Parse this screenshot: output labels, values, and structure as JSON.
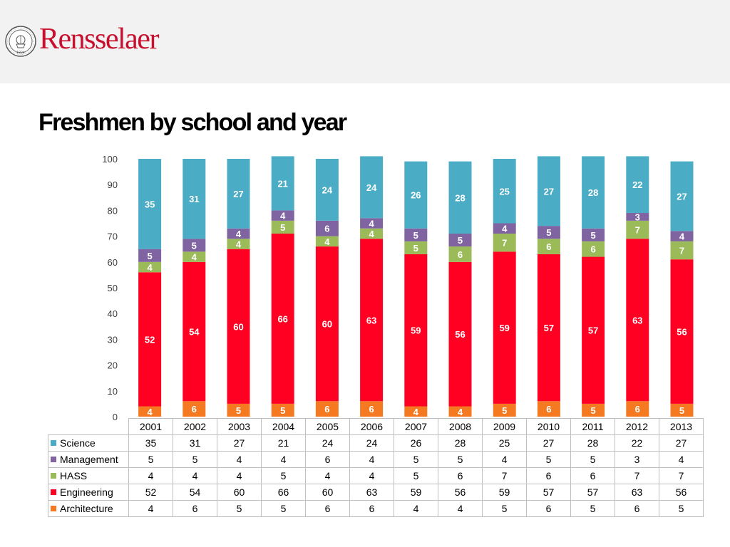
{
  "header": {
    "brand": "Rensselaer",
    "seal": {
      "label": "Rensselaer Polytechnic Institute seal",
      "year": "1824"
    }
  },
  "page_title": "Freshmen by school and year",
  "colors": {
    "header_bg": "#f2f2f2",
    "brand": "#c8102e",
    "Science": "#4bacc6",
    "Management": "#8064a2",
    "HASS": "#9bbb59",
    "Engineering": "#ff0022",
    "Architecture": "#f47920"
  },
  "chart_data": {
    "type": "bar",
    "stacked": true,
    "title": "",
    "xlabel": "",
    "ylabel": "",
    "ylim": [
      0,
      100
    ],
    "yticks": [
      0,
      10,
      20,
      30,
      40,
      50,
      60,
      70,
      80,
      90,
      100
    ],
    "grid": false,
    "legend": "data table below the chart",
    "categories": [
      "2001",
      "2002",
      "2003",
      "2004",
      "2005",
      "2006",
      "2007",
      "2008",
      "2009",
      "2010",
      "2011",
      "2012",
      "2013"
    ],
    "series": [
      {
        "name": "Architecture",
        "color": "#f47920",
        "values": [
          4,
          6,
          5,
          5,
          6,
          6,
          4,
          4,
          5,
          6,
          5,
          6,
          5
        ]
      },
      {
        "name": "Engineering",
        "color": "#ff0022",
        "values": [
          52,
          54,
          60,
          66,
          60,
          63,
          59,
          56,
          59,
          57,
          57,
          63,
          56
        ]
      },
      {
        "name": "HASS",
        "color": "#9bbb59",
        "values": [
          4,
          4,
          4,
          5,
          4,
          4,
          5,
          6,
          7,
          6,
          6,
          7,
          7
        ]
      },
      {
        "name": "Management",
        "color": "#8064a2",
        "values": [
          5,
          5,
          4,
          4,
          6,
          4,
          5,
          5,
          4,
          5,
          5,
          3,
          4
        ]
      },
      {
        "name": "Science",
        "color": "#4bacc6",
        "values": [
          35,
          31,
          27,
          21,
          24,
          24,
          26,
          28,
          25,
          27,
          28,
          22,
          27
        ]
      }
    ],
    "table_row_order": [
      "Science",
      "Management",
      "HASS",
      "Engineering",
      "Architecture"
    ]
  }
}
